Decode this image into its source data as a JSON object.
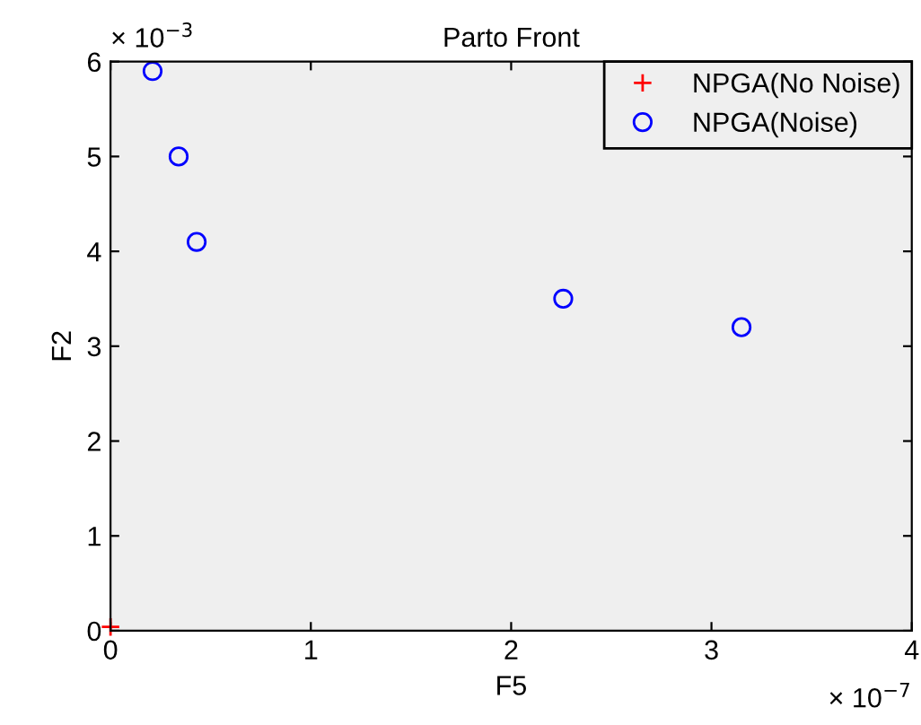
{
  "chart_data": {
    "type": "scatter",
    "title": "Parto Front",
    "xlabel": "F5",
    "ylabel": "F2",
    "xlim": [
      0,
      4
    ],
    "xticks": [
      0,
      1,
      2,
      3,
      4
    ],
    "ylim": [
      0,
      6
    ],
    "yticks": [
      0,
      1,
      2,
      3,
      4,
      5,
      6
    ],
    "annotations": [
      "× 10$^{−3}$",
      "× 10$^{−7}$"
    ],
    "legend": "top right",
    "grid": false,
    "series": [
      {
        "name": "NPGA(No Noise)",
        "color": "#ff0000",
        "marker": "cross",
        "x": [
          0
        ],
        "values": [
          0.04
        ]
      },
      {
        "name": "NPGA(Noise)",
        "color": "#0000ff",
        "marker": "circle",
        "x": [
          0.21,
          0.34,
          0.43,
          2.26,
          3.15
        ],
        "values": [
          5.9,
          5.0,
          4.1,
          3.5,
          3.2
        ]
      }
    ]
  }
}
